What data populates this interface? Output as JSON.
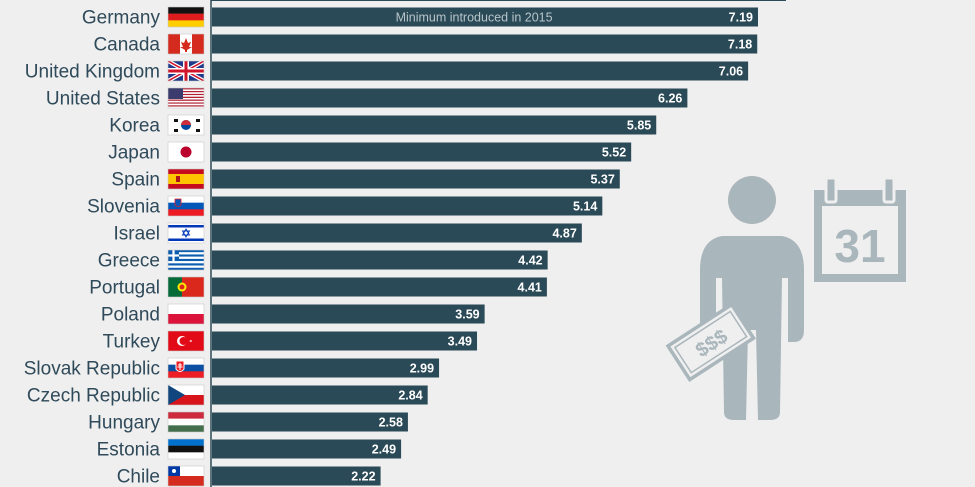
{
  "colors": {
    "bar": "#2b4a57",
    "axis": "#2b4a57",
    "label_text": "#2f4a5a",
    "value_text": "#ffffff",
    "note_text": "#b8c4c9",
    "icon_fill": "#a9b6bb",
    "background": "#efefef"
  },
  "chart_data": {
    "type": "bar",
    "orientation": "horizontal",
    "categories": [
      "Germany",
      "Canada",
      "United Kingdom",
      "United States",
      "Korea",
      "Japan",
      "Spain",
      "Slovenia",
      "Israel",
      "Greece",
      "Portugal",
      "Poland",
      "Turkey",
      "Slovak Republic",
      "Czech Republic",
      "Hungary",
      "Estonia",
      "Chile"
    ],
    "values": [
      7.19,
      7.18,
      7.06,
      6.26,
      5.85,
      5.52,
      5.37,
      5.14,
      4.87,
      4.42,
      4.41,
      3.59,
      3.49,
      2.99,
      2.84,
      2.58,
      2.49,
      2.22
    ],
    "value_labels": [
      "7.19",
      "7.18",
      "7.06",
      "6.26",
      "5.85",
      "5.52",
      "5.37",
      "5.14",
      "4.87",
      "4.42",
      "4.41",
      "3.59",
      "3.49",
      "2.99",
      "2.84",
      "2.58",
      "2.49",
      "2.22"
    ],
    "flags": [
      "germany-flag-icon",
      "canada-flag-icon",
      "uk-flag-icon",
      "usa-flag-icon",
      "korea-flag-icon",
      "japan-flag-icon",
      "spain-flag-icon",
      "slovenia-flag-icon",
      "israel-flag-icon",
      "greece-flag-icon",
      "portugal-flag-icon",
      "poland-flag-icon",
      "turkey-flag-icon",
      "slovakia-flag-icon",
      "czech-flag-icon",
      "hungary-flag-icon",
      "estonia-flag-icon",
      "chile-flag-icon"
    ],
    "annotation": "Minimum introduced in 2015",
    "annotation_category": "Germany",
    "xlim": [
      0,
      7.19
    ],
    "grid": false,
    "legend": "none"
  },
  "decoration": {
    "calendar_day": "31",
    "money_symbol": "$$$",
    "person_icon": "person-icon",
    "calendar_icon": "calendar-icon",
    "banknote_icon": "banknote-icon"
  }
}
